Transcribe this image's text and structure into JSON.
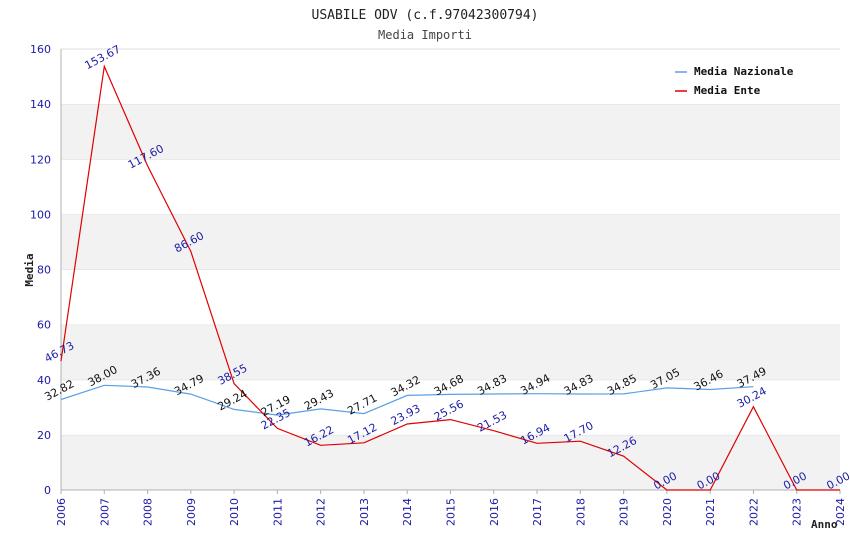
{
  "chart_data": {
    "type": "line",
    "title": "USABILE ODV (c.f.97042300794)",
    "subtitle": "Media Importi",
    "xlabel": "Anno",
    "ylabel": "Media",
    "ylim": [
      0,
      160
    ],
    "yticks": [
      "0",
      "20",
      "40",
      "60",
      "80",
      "100",
      "120",
      "140",
      "160"
    ],
    "categories": [
      "2006",
      "2007",
      "2008",
      "2009",
      "2010",
      "2011",
      "2012",
      "2013",
      "2014",
      "2015",
      "2016",
      "2017",
      "2018",
      "2019",
      "2020",
      "2021",
      "2022",
      "2023",
      "2024"
    ],
    "grid": true,
    "legend": "top-right",
    "series": [
      {
        "name": "Media Nazionale",
        "color": "#5aa0e6",
        "values": [
          32.82,
          38.0,
          37.36,
          34.79,
          29.24,
          27.19,
          29.43,
          27.71,
          34.32,
          34.68,
          34.83,
          34.94,
          34.83,
          34.85,
          37.05,
          36.46,
          37.49,
          null,
          null
        ],
        "labels": [
          "32.82",
          "38.00",
          "37.36",
          "34.79",
          "29.24",
          "27.19",
          "29.43",
          "27.71",
          "34.32",
          "34.68",
          "34.83",
          "34.94",
          "34.83",
          "34.85",
          "37.05",
          "36.46",
          "37.49",
          "",
          ""
        ]
      },
      {
        "name": "Media Ente",
        "color": "#e00000",
        "values": [
          46.73,
          153.67,
          117.6,
          86.6,
          38.55,
          22.35,
          16.22,
          17.12,
          23.93,
          25.56,
          21.53,
          16.94,
          17.7,
          12.26,
          0.0,
          0.0,
          30.24,
          0.0,
          0.0
        ],
        "labels": [
          "46.73",
          "153.67",
          "117.60",
          "86.60",
          "38.55",
          "22.35",
          "16.22",
          "17.12",
          "23.93",
          "25.56",
          "21.53",
          "16.94",
          "17.70",
          "12.26",
          "0.00",
          "0.00",
          "30.24",
          "0.00",
          "0.00"
        ]
      }
    ]
  }
}
